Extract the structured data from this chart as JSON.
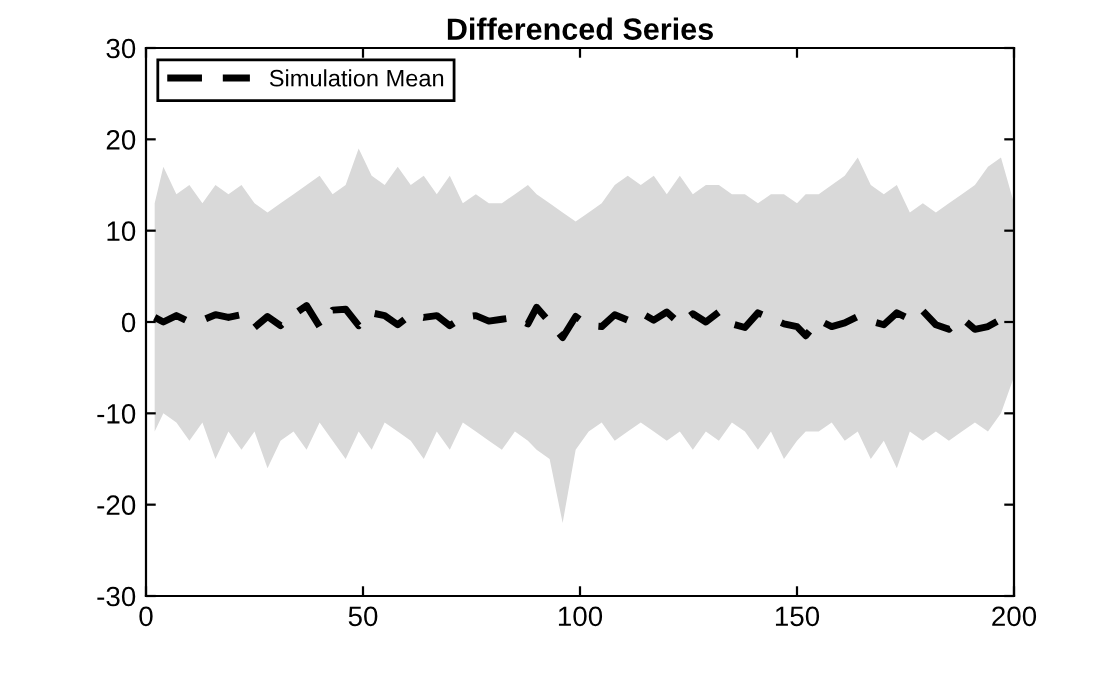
{
  "chart_data": {
    "type": "line",
    "title": "Differenced Series",
    "x": [
      2,
      4,
      7,
      10,
      13,
      16,
      19,
      22,
      25,
      28,
      31,
      34,
      37,
      40,
      43,
      46,
      49,
      52,
      55,
      58,
      61,
      64,
      67,
      70,
      73,
      76,
      79,
      82,
      85,
      88,
      90,
      93,
      96,
      99,
      102,
      105,
      108,
      111,
      114,
      117,
      120,
      123,
      126,
      129,
      132,
      135,
      138,
      141,
      144,
      147,
      150,
      152,
      155,
      158,
      161,
      164,
      167,
      170,
      173,
      176,
      179,
      182,
      185,
      188,
      191,
      194,
      197,
      200
    ],
    "series": [
      {
        "name": "Simulation Mean",
        "color": "#000000",
        "line_style": "dashed",
        "values": [
          0.5,
          0,
          0.7,
          0,
          0.2,
          0.8,
          0.5,
          0.8,
          -0.6,
          0.6,
          -0.4,
          0.8,
          1.8,
          -0.5,
          1.3,
          1.4,
          -0.4,
          1.0,
          0.7,
          -0.3,
          0.8,
          0.5,
          0.7,
          -0.4,
          0.5,
          0.7,
          0.1,
          0.3,
          0.5,
          -0.2,
          1.6,
          0,
          -1.7,
          0.6,
          -0.4,
          -0.5,
          0.8,
          0.2,
          1.0,
          0.2,
          1.1,
          -0.2,
          0.9,
          0,
          1.1,
          -0.2,
          -0.6,
          1.0,
          0.4,
          -0.2,
          -0.5,
          -1.5,
          0.2,
          -0.5,
          -0.1,
          0.6,
          0.1,
          -0.3,
          1.0,
          0.3,
          1.2,
          -0.3,
          -0.8,
          0.4,
          -0.8,
          -0.5,
          0.3,
          1.2
        ],
        "upper": [
          13,
          17,
          14,
          15,
          13,
          15,
          14,
          15,
          13,
          12,
          13,
          14,
          15,
          16,
          14,
          15,
          19,
          16,
          15,
          17,
          15,
          16,
          14,
          16,
          13,
          14,
          13,
          13,
          14,
          15,
          14,
          13,
          12,
          11,
          12,
          13,
          15,
          16,
          15,
          16,
          14,
          16,
          14,
          15,
          15,
          14,
          14,
          13,
          14,
          14,
          13,
          14,
          14,
          15,
          16,
          18,
          15,
          14,
          15,
          12,
          13,
          12,
          13,
          14,
          15,
          17,
          18,
          13
        ],
        "lower": [
          -12,
          -10,
          -11,
          -13,
          -11,
          -15,
          -12,
          -14,
          -12,
          -16,
          -13,
          -12,
          -14,
          -11,
          -13,
          -15,
          -12,
          -14,
          -11,
          -12,
          -13,
          -15,
          -12,
          -14,
          -11,
          -12,
          -13,
          -14,
          -12,
          -13,
          -14,
          -15,
          -22,
          -14,
          -12,
          -11,
          -13,
          -12,
          -11,
          -12,
          -13,
          -12,
          -14,
          -12,
          -13,
          -11,
          -12,
          -14,
          -12,
          -15,
          -13,
          -12,
          -12,
          -11,
          -13,
          -12,
          -15,
          -13,
          -16,
          -12,
          -13,
          -12,
          -13,
          -12,
          -11,
          -12,
          -10,
          -6
        ]
      }
    ],
    "xlim": [
      0,
      200
    ],
    "xticks": [
      0,
      50,
      100,
      150,
      200
    ],
    "ylim": [
      -30,
      30
    ],
    "yticks": [
      -30,
      -20,
      -10,
      0,
      10,
      20,
      30
    ],
    "grid": false,
    "legend": "top left"
  }
}
